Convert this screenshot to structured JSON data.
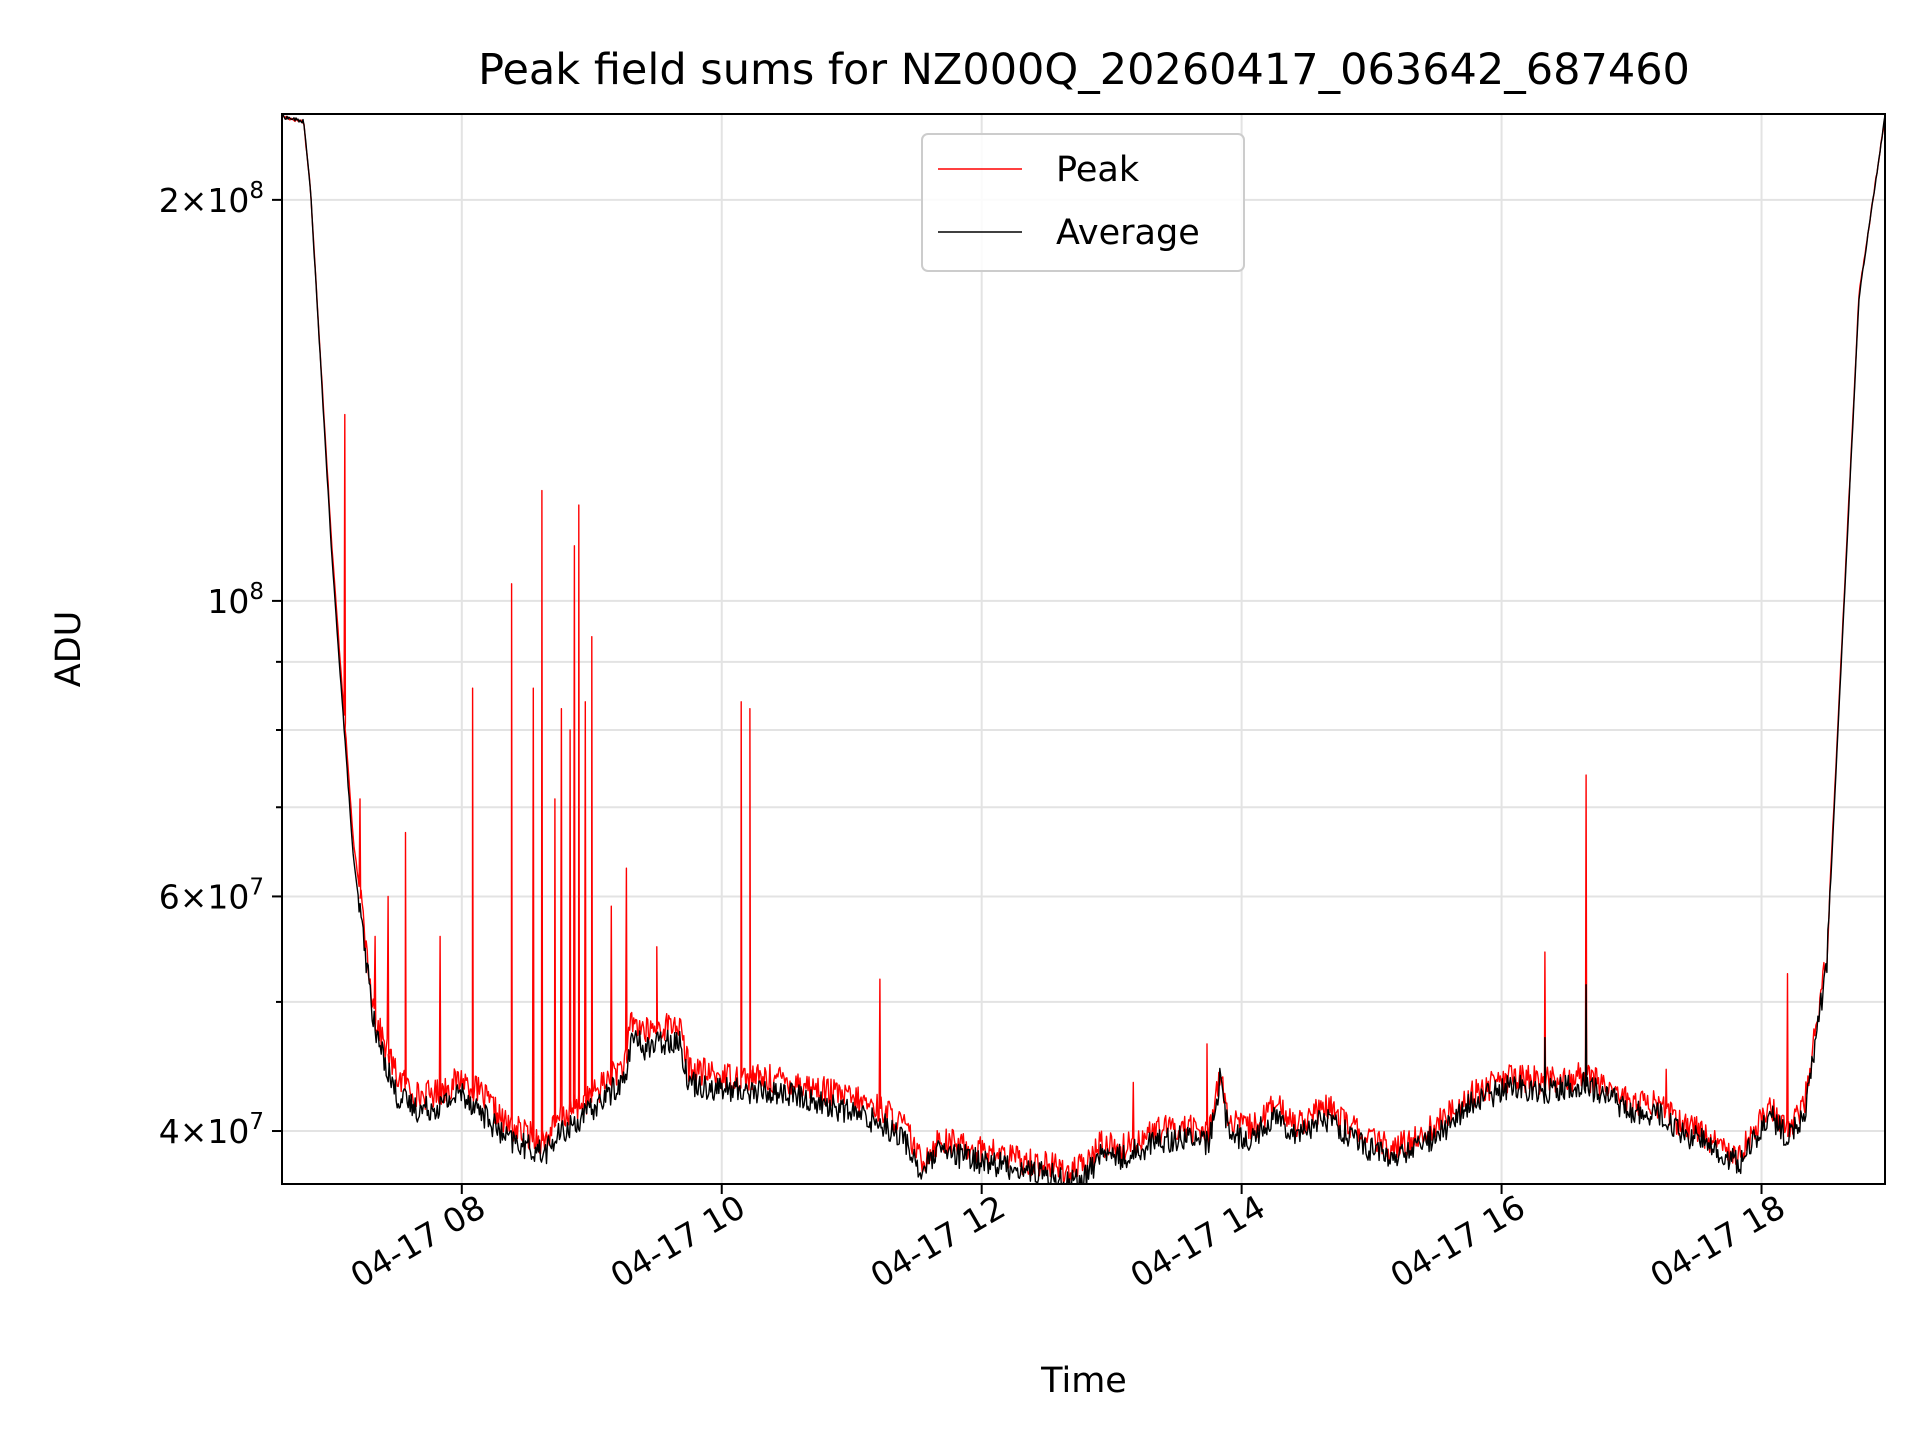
{
  "chart_data": {
    "type": "line",
    "title": "Peak field sums for NZ000Q_20260417_063642_687460",
    "xlabel": "Time",
    "ylabel": "ADU",
    "x_range": [
      "2026-04-17 06:37",
      "2026-04-17 18:57"
    ],
    "y_scale": "log",
    "ylim": [
      36500000,
      232000000
    ],
    "grid": true,
    "legend": "upper center",
    "x_ticks": [
      {
        "value": "2026-04-17 08:00",
        "label": "04-17 08"
      },
      {
        "value": "2026-04-17 10:00",
        "label": "04-17 10"
      },
      {
        "value": "2026-04-17 12:00",
        "label": "04-17 12"
      },
      {
        "value": "2026-04-17 14:00",
        "label": "04-17 14"
      },
      {
        "value": "2026-04-17 16:00",
        "label": "04-17 16"
      },
      {
        "value": "2026-04-17 18:00",
        "label": "04-17 18"
      }
    ],
    "y_ticks": [
      {
        "value": 40000000,
        "mantissa": "4",
        "exponent": "7"
      },
      {
        "value": 60000000,
        "mantissa": "6",
        "exponent": "7"
      },
      {
        "value": 100000000,
        "mantissa": "",
        "exponent": "8"
      },
      {
        "value": 200000000,
        "mantissa": "2",
        "exponent": "8"
      }
    ],
    "y_minor_ticks": [
      50000000,
      70000000,
      80000000,
      90000000
    ],
    "series": [
      {
        "name": "Peak",
        "color": "#ff0000",
        "x": [
          "2026-04-17 06:37",
          "2026-04-17 06:47",
          "2026-04-17 06:50",
          "2026-04-17 07:00",
          "2026-04-17 07:10",
          "2026-04-17 07:20",
          "2026-04-17 07:30",
          "2026-04-17 07:40",
          "2026-04-17 07:50",
          "2026-04-17 08:00",
          "2026-04-17 08:10",
          "2026-04-17 08:20",
          "2026-04-17 08:30",
          "2026-04-17 08:38",
          "2026-04-17 08:45",
          "2026-04-17 09:00",
          "2026-04-17 09:10",
          "2026-04-17 09:16",
          "2026-04-17 09:18",
          "2026-04-17 09:25",
          "2026-04-17 09:35",
          "2026-04-17 09:40",
          "2026-04-17 09:45",
          "2026-04-17 10:00",
          "2026-04-17 10:30",
          "2026-04-17 11:00",
          "2026-04-17 11:15",
          "2026-04-17 11:25",
          "2026-04-17 11:32",
          "2026-04-17 11:40",
          "2026-04-17 12:00",
          "2026-04-17 12:20",
          "2026-04-17 12:30",
          "2026-04-17 12:40",
          "2026-04-17 12:48",
          "2026-04-17 12:55",
          "2026-04-17 13:05",
          "2026-04-17 13:20",
          "2026-04-17 13:35",
          "2026-04-17 13:45",
          "2026-04-17 13:50",
          "2026-04-17 13:54",
          "2026-04-17 14:05",
          "2026-04-17 14:15",
          "2026-04-17 14:25",
          "2026-04-17 14:40",
          "2026-04-17 14:55",
          "2026-04-17 15:10",
          "2026-04-17 15:30",
          "2026-04-17 15:45",
          "2026-04-17 15:55",
          "2026-04-17 16:05",
          "2026-04-17 16:20",
          "2026-04-17 16:38",
          "2026-04-17 16:48",
          "2026-04-17 17:00",
          "2026-04-17 17:15",
          "2026-04-17 17:22",
          "2026-04-17 17:30",
          "2026-04-17 17:40",
          "2026-04-17 17:50",
          "2026-04-17 18:00",
          "2026-04-17 18:05",
          "2026-04-17 18:12",
          "2026-04-17 18:20",
          "2026-04-17 18:30",
          "2026-04-17 18:45",
          "2026-04-17 18:57"
        ],
        "y": [
          231000000,
          229000000,
          205000000,
          110000000,
          66000000,
          48500000,
          44000000,
          42500000,
          42800000,
          43800000,
          42500000,
          40500000,
          39800000,
          39300000,
          40800000,
          42500000,
          44200000,
          45000000,
          48500000,
          47500000,
          48000000,
          48200000,
          44500000,
          44000000,
          43700000,
          42300000,
          41500000,
          40200000,
          37900000,
          39400000,
          38700000,
          38000000,
          37800000,
          37300000,
          37600000,
          39200000,
          38800000,
          40000000,
          40300000,
          39800000,
          44500000,
          40500000,
          40200000,
          41800000,
          40600000,
          41600000,
          39800000,
          38700000,
          40400000,
          42500000,
          43300000,
          43900000,
          43600000,
          44000000,
          43400000,
          42000000,
          41800000,
          40500000,
          40300000,
          39000000,
          38600000,
          40800000,
          41600000,
          40200000,
          42000000,
          54000000,
          170000000,
          231000000
        ],
        "spikes": [
          {
            "t": "2026-04-17 07:06",
            "y": 138000000
          },
          {
            "t": "2026-04-17 07:13",
            "y": 71000000
          },
          {
            "t": "2026-04-17 07:20",
            "y": 56000000
          },
          {
            "t": "2026-04-17 07:26",
            "y": 60000000
          },
          {
            "t": "2026-04-17 07:34",
            "y": 67000000
          },
          {
            "t": "2026-04-17 07:50",
            "y": 56000000
          },
          {
            "t": "2026-04-17 08:05",
            "y": 86000000
          },
          {
            "t": "2026-04-17 08:23",
            "y": 103000000
          },
          {
            "t": "2026-04-17 08:33",
            "y": 86000000
          },
          {
            "t": "2026-04-17 08:37",
            "y": 121000000
          },
          {
            "t": "2026-04-17 08:43",
            "y": 71000000
          },
          {
            "t": "2026-04-17 08:46",
            "y": 83000000
          },
          {
            "t": "2026-04-17 08:50",
            "y": 80000000
          },
          {
            "t": "2026-04-17 08:52",
            "y": 110000000
          },
          {
            "t": "2026-04-17 08:54",
            "y": 118000000
          },
          {
            "t": "2026-04-17 08:57",
            "y": 84000000
          },
          {
            "t": "2026-04-17 09:00",
            "y": 94000000
          },
          {
            "t": "2026-04-17 09:09",
            "y": 59000000
          },
          {
            "t": "2026-04-17 09:16",
            "y": 63000000
          },
          {
            "t": "2026-04-17 09:30",
            "y": 55000000
          },
          {
            "t": "2026-04-17 10:09",
            "y": 84000000
          },
          {
            "t": "2026-04-17 10:13",
            "y": 83000000
          },
          {
            "t": "2026-04-17 11:13",
            "y": 52000000
          },
          {
            "t": "2026-04-17 13:10",
            "y": 43500000
          },
          {
            "t": "2026-04-17 13:44",
            "y": 46500000
          },
          {
            "t": "2026-04-17 16:20",
            "y": 54500000
          },
          {
            "t": "2026-04-17 16:39",
            "y": 74000000
          },
          {
            "t": "2026-04-17 17:16",
            "y": 44500000
          },
          {
            "t": "2026-04-17 18:12",
            "y": 52500000
          }
        ]
      },
      {
        "name": "Average",
        "color": "#000000",
        "x": [
          "2026-04-17 06:37",
          "2026-04-17 06:47",
          "2026-04-17 06:50",
          "2026-04-17 07:00",
          "2026-04-17 07:10",
          "2026-04-17 07:20",
          "2026-04-17 07:30",
          "2026-04-17 07:40",
          "2026-04-17 07:50",
          "2026-04-17 08:00",
          "2026-04-17 08:10",
          "2026-04-17 08:20",
          "2026-04-17 08:30",
          "2026-04-17 08:38",
          "2026-04-17 08:45",
          "2026-04-17 09:00",
          "2026-04-17 09:10",
          "2026-04-17 09:16",
          "2026-04-17 09:18",
          "2026-04-17 09:25",
          "2026-04-17 09:35",
          "2026-04-17 09:40",
          "2026-04-17 09:45",
          "2026-04-17 10:00",
          "2026-04-17 10:30",
          "2026-04-17 11:00",
          "2026-04-17 11:15",
          "2026-04-17 11:25",
          "2026-04-17 11:32",
          "2026-04-17 11:40",
          "2026-04-17 12:00",
          "2026-04-17 12:20",
          "2026-04-17 12:30",
          "2026-04-17 12:40",
          "2026-04-17 12:48",
          "2026-04-17 12:55",
          "2026-04-17 13:05",
          "2026-04-17 13:20",
          "2026-04-17 13:35",
          "2026-04-17 13:45",
          "2026-04-17 13:50",
          "2026-04-17 13:54",
          "2026-04-17 14:05",
          "2026-04-17 14:15",
          "2026-04-17 14:25",
          "2026-04-17 14:40",
          "2026-04-17 14:55",
          "2026-04-17 15:10",
          "2026-04-17 15:30",
          "2026-04-17 15:45",
          "2026-04-17 15:55",
          "2026-04-17 16:05",
          "2026-04-17 16:20",
          "2026-04-17 16:38",
          "2026-04-17 16:48",
          "2026-04-17 17:00",
          "2026-04-17 17:15",
          "2026-04-17 17:22",
          "2026-04-17 17:30",
          "2026-04-17 17:40",
          "2026-04-17 17:50",
          "2026-04-17 18:00",
          "2026-04-17 18:05",
          "2026-04-17 18:12",
          "2026-04-17 18:20",
          "2026-04-17 18:30",
          "2026-04-17 18:45",
          "2026-04-17 18:57"
        ],
        "y": [
          231000000,
          229000000,
          205000000,
          108000000,
          64000000,
          47500000,
          42500000,
          41500000,
          41800000,
          42800000,
          41200000,
          39500000,
          38900000,
          38500000,
          39700000,
          41500000,
          43000000,
          43800000,
          47000000,
          46200000,
          46800000,
          46900000,
          43500000,
          43000000,
          42700000,
          41300000,
          40500000,
          39300000,
          37200000,
          38600000,
          38000000,
          37400000,
          37100000,
          36700000,
          36900000,
          38500000,
          38200000,
          39300000,
          39600000,
          39100000,
          43800000,
          39800000,
          39500000,
          41100000,
          39900000,
          40900000,
          39100000,
          38100000,
          39700000,
          41800000,
          42600000,
          43200000,
          42900000,
          43300000,
          42700000,
          41300000,
          41100000,
          39800000,
          39600000,
          38400000,
          37900000,
          40100000,
          40900000,
          39500000,
          41300000,
          53000000,
          169000000,
          231000000
        ],
        "spikes": [
          {
            "t": "2026-04-17 16:20",
            "y": 47000000
          },
          {
            "t": "2026-04-17 16:39",
            "y": 51500000
          }
        ]
      }
    ]
  }
}
